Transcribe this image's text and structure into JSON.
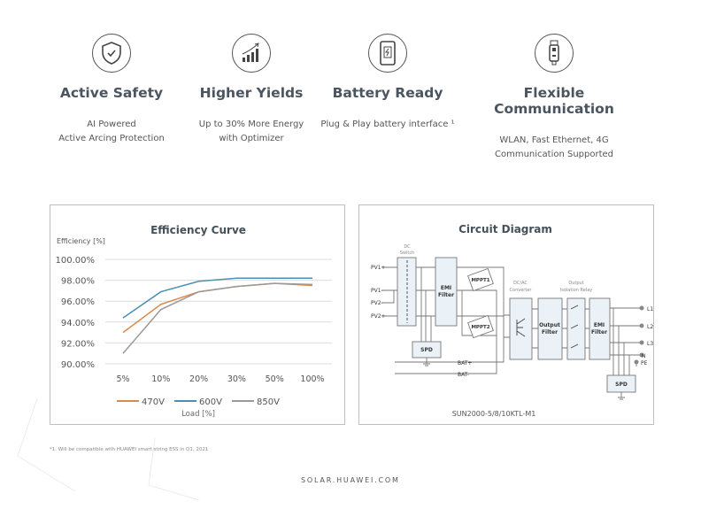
{
  "features": [
    {
      "icon": "shield-check-icon",
      "title": "Active Safety",
      "desc": [
        "AI Powered",
        "Active Arcing Protection"
      ]
    },
    {
      "icon": "growth-bars-icon",
      "title": "Higher Yields",
      "desc": [
        "Up to 30% More Energy",
        "with Optimizer"
      ]
    },
    {
      "icon": "battery-phone-icon",
      "title": "Battery Ready",
      "desc": [
        "Plug & Play battery interface ¹",
        ""
      ]
    },
    {
      "icon": "dongle-icon",
      "title": "Flexible Communication",
      "desc": [
        "WLAN, Fast Ethernet, 4G",
        "Communication Supported"
      ]
    }
  ],
  "chart_data": {
    "type": "line",
    "title": "Efficiency Curve",
    "ylabel": "Efficiency [%]",
    "xlabel": "Load [%]",
    "categories": [
      "5%",
      "10%",
      "20%",
      "30%",
      "50%",
      "100%"
    ],
    "yticks": [
      "90.00%",
      "92.00%",
      "94.00%",
      "96.00%",
      "98.00%",
      "100.00%"
    ],
    "ylim": [
      90,
      100
    ],
    "grid": true,
    "legend": "bottom",
    "series": [
      {
        "name": "470V",
        "color": "#d9894a",
        "values": [
          93.0,
          95.7,
          96.9,
          97.4,
          97.7,
          97.5
        ]
      },
      {
        "name": "600V",
        "color": "#4a8fb5",
        "values": [
          94.4,
          96.9,
          97.9,
          98.2,
          98.2,
          98.2
        ]
      },
      {
        "name": "850V",
        "color": "#9a9a9a",
        "values": [
          91.0,
          95.2,
          96.9,
          97.4,
          97.7,
          97.6
        ]
      }
    ]
  },
  "circuit": {
    "title": "Circuit Diagram",
    "dc_switch": [
      "DC",
      "Switch"
    ],
    "inputs": [
      "PV1+",
      "PV1-",
      "PV2-",
      "PV2+"
    ],
    "emi": [
      "EMI",
      "Filter"
    ],
    "mppt1": "MPPT1",
    "mppt2": "MPPT2",
    "spd": "SPD",
    "dcac": [
      "DC/AC",
      "Converter"
    ],
    "output_filter": [
      "Output",
      "Filter"
    ],
    "relay": [
      "Output",
      "Isolation Relay"
    ],
    "bat": [
      "BAT+",
      "BAT-"
    ],
    "outputs": [
      "L1",
      "L2",
      "L3",
      "N",
      "PE"
    ],
    "model": "SUN2000-5/8/10KTL-M1"
  },
  "footnote": "*1. Will be compatible with HUAWEI smart string ESS in Q1, 2021",
  "site": "SOLAR.HUAWEI.COM"
}
